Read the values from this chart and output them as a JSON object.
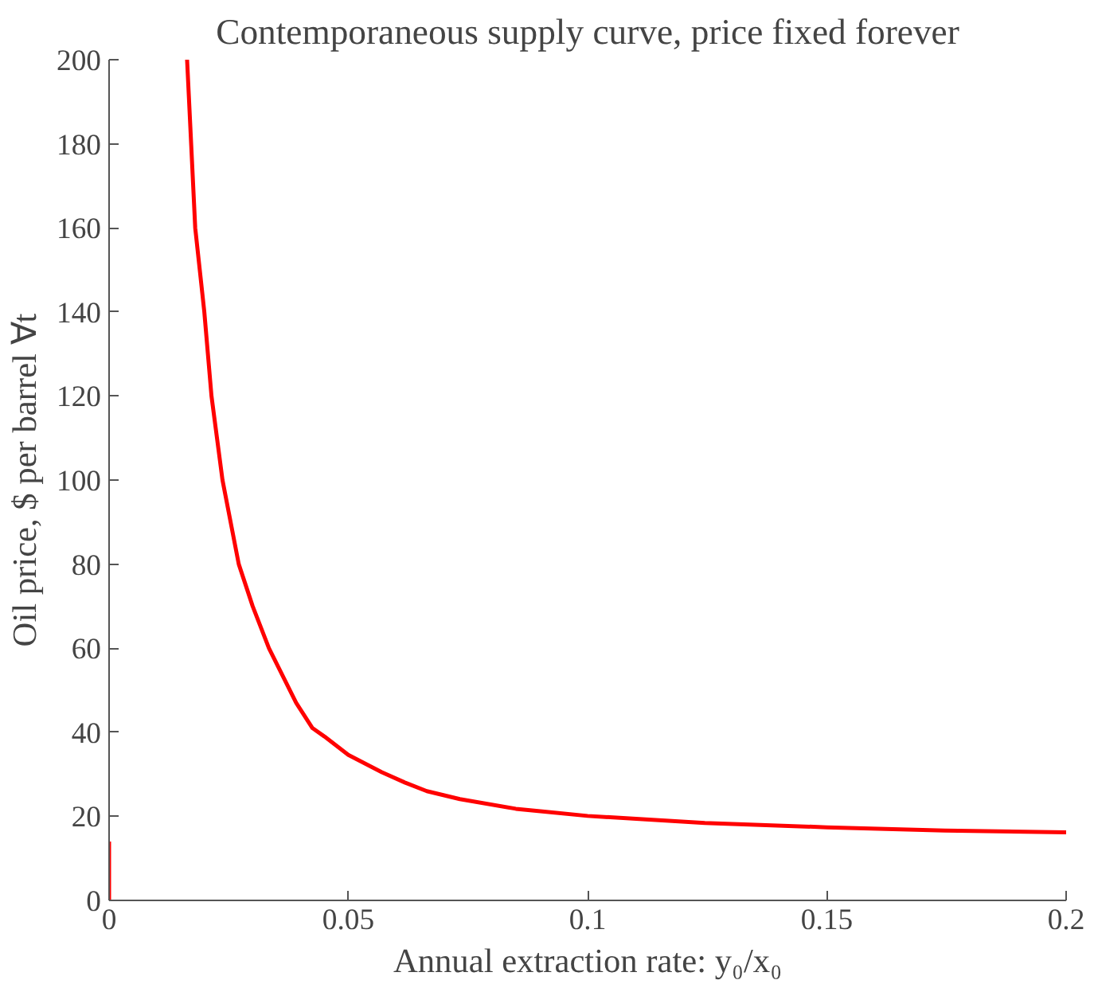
{
  "chart_data": {
    "type": "line",
    "title": "Contemporaneous supply curve, price fixed forever",
    "xlabel": "Annual extraction rate: y₀/x₀",
    "ylabel": "Oil price, $ per barrel ∀t",
    "xlim": [
      0,
      0.2
    ],
    "ylim": [
      0,
      200
    ],
    "xticks": [
      0,
      0.05,
      0.1,
      0.15,
      0.2
    ],
    "yticks": [
      0,
      20,
      40,
      60,
      80,
      100,
      120,
      140,
      160,
      180,
      200
    ],
    "marker": "none",
    "line_style": "solid",
    "series": [
      {
        "color": "#ff0000",
        "x": [
          0.0163,
          0.018,
          0.0199,
          0.0214,
          0.0237,
          0.0271,
          0.03,
          0.0334,
          0.0391,
          0.0425,
          0.045,
          0.05,
          0.057,
          0.0619,
          0.0664,
          0.0733,
          0.085,
          0.1,
          0.1245,
          0.15,
          0.1746,
          0.2
        ],
        "values": [
          200,
          160,
          140,
          120,
          100,
          80,
          70,
          60,
          47,
          41,
          39,
          34.6,
          30.5,
          28,
          26,
          24.1,
          21.8,
          20.1,
          18.4,
          17.4,
          16.6,
          16.2
        ]
      },
      {
        "color": "#ff0000",
        "x": [
          0,
          0
        ],
        "values": [
          0,
          14
        ]
      }
    ]
  }
}
